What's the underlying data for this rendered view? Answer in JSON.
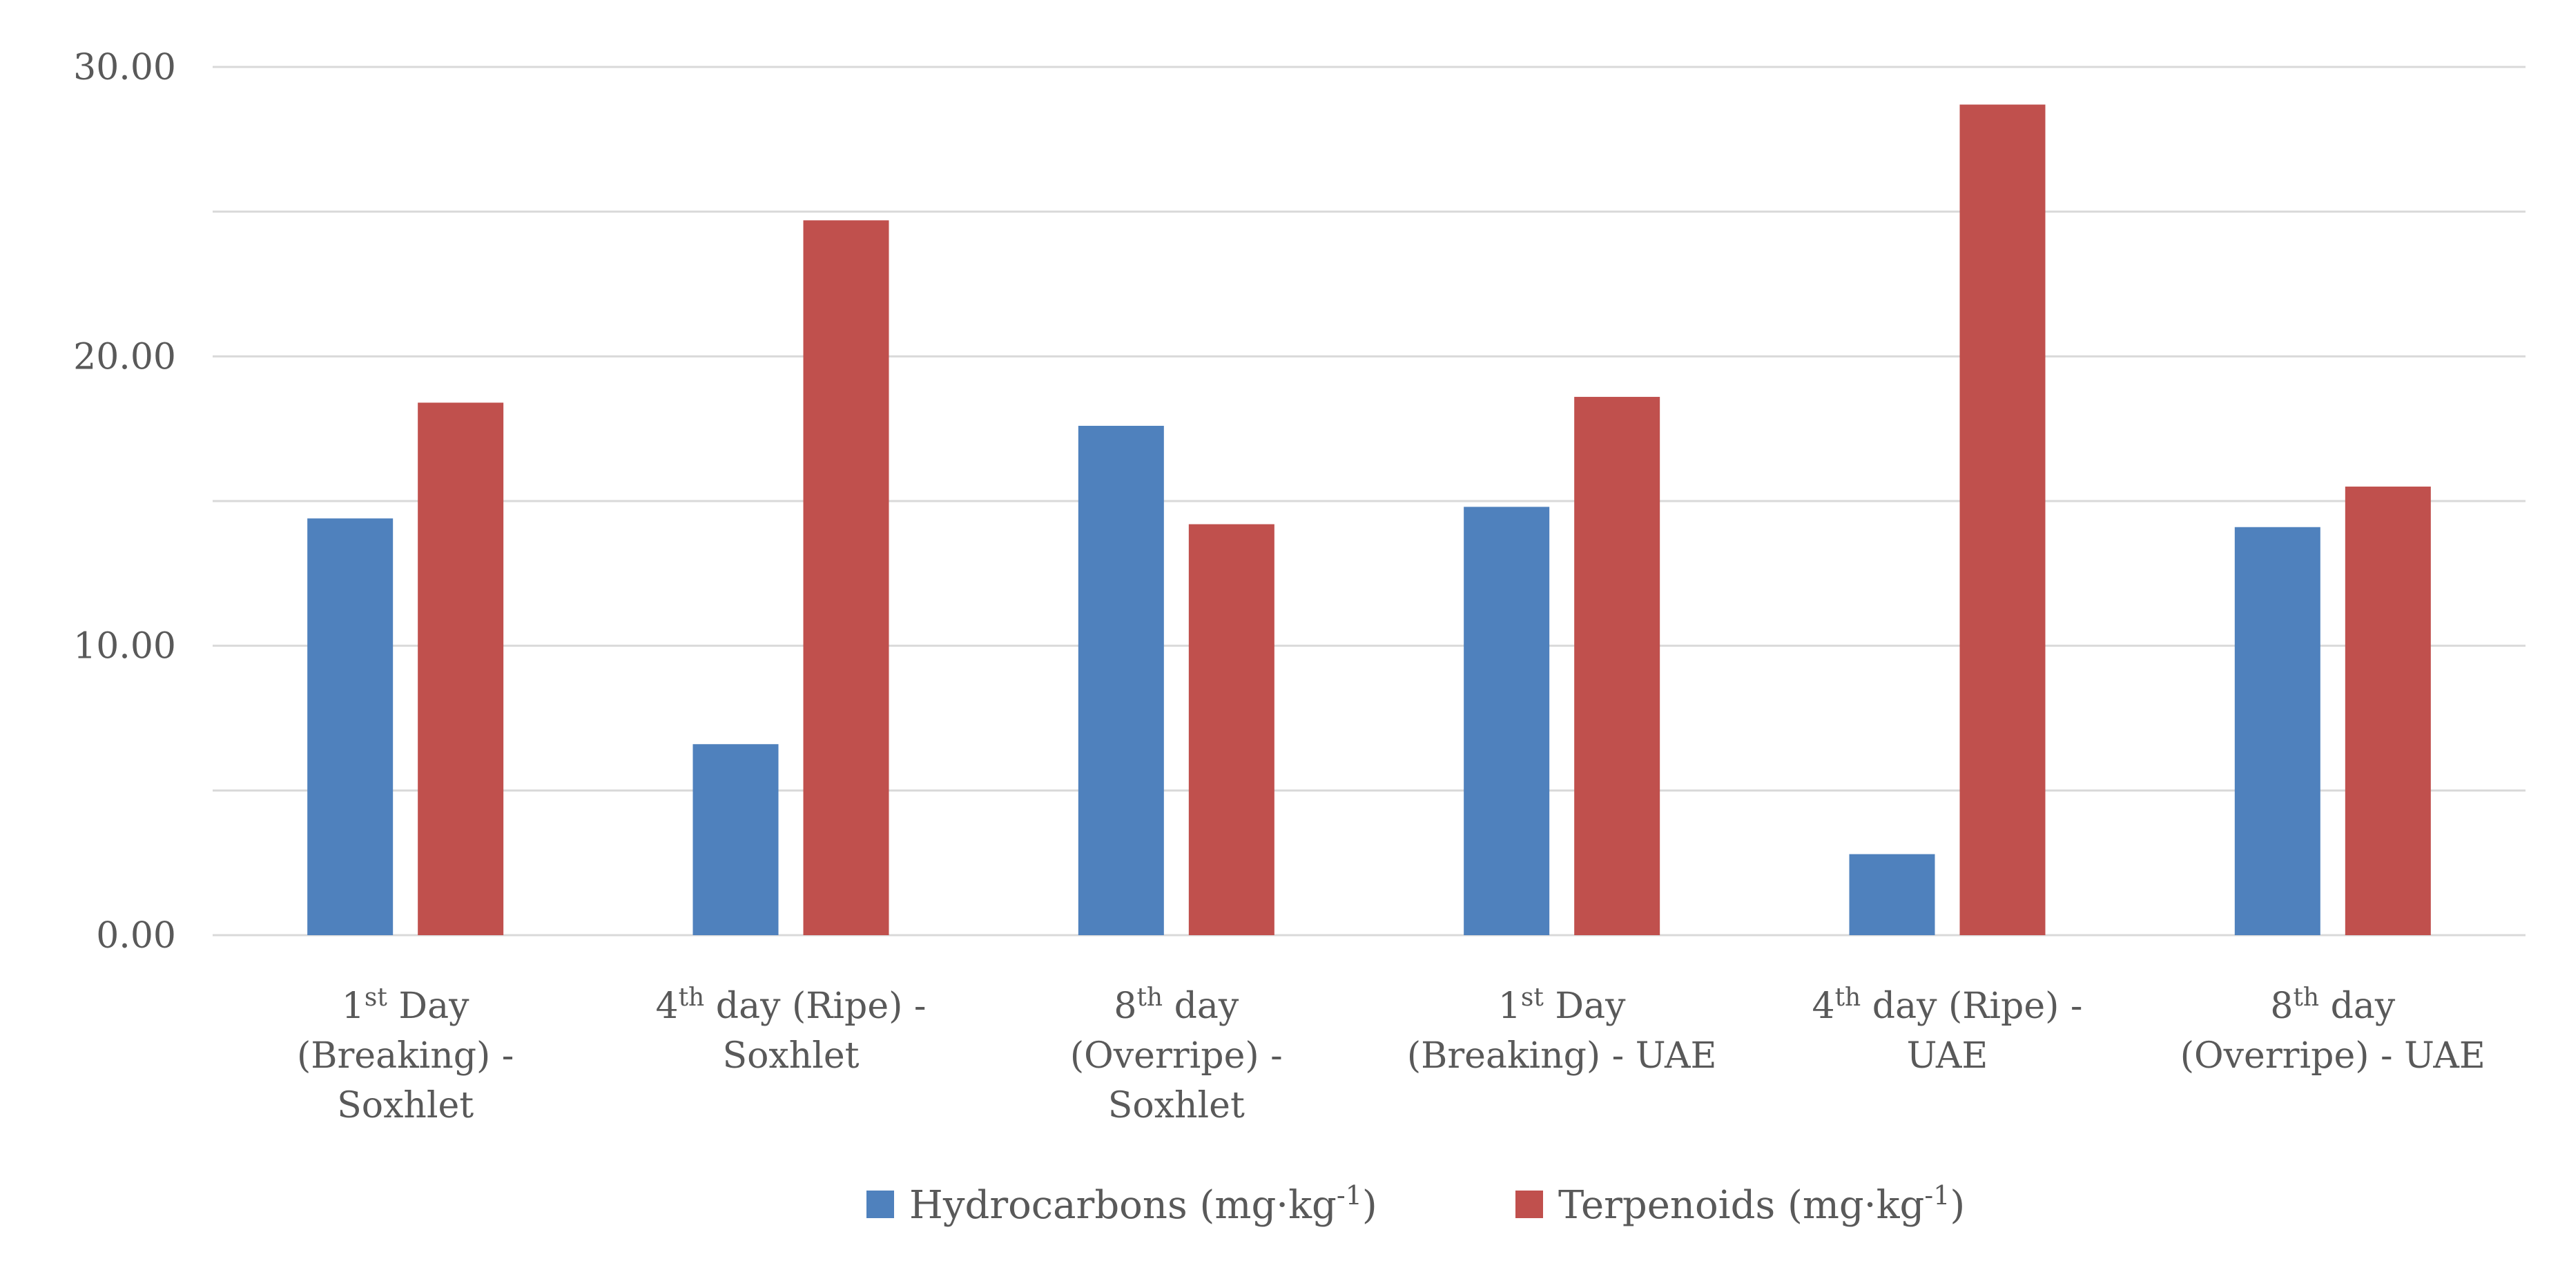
{
  "chart_data": {
    "type": "bar",
    "title": "",
    "xlabel": "",
    "ylabel": "",
    "ylim": [
      0,
      30
    ],
    "yticks": [
      "0.00",
      "10.00",
      "20.00",
      "30.00"
    ],
    "grid": true,
    "legend_position": "bottom",
    "categories": [
      {
        "lines": [
          [
            {
              "t": "1"
            },
            {
              "t": "st",
              "sup": true
            },
            {
              "t": " Day"
            }
          ],
          [
            {
              "t": "(Breaking) -"
            }
          ],
          [
            {
              "t": "Soxhlet"
            }
          ]
        ]
      },
      {
        "lines": [
          [
            {
              "t": "4"
            },
            {
              "t": "th",
              "sup": true
            },
            {
              "t": " day (Ripe) -"
            }
          ],
          [
            {
              "t": "Soxhlet"
            }
          ]
        ]
      },
      {
        "lines": [
          [
            {
              "t": "8"
            },
            {
              "t": "th",
              "sup": true
            },
            {
              "t": " day"
            }
          ],
          [
            {
              "t": "(Overripe) -"
            }
          ],
          [
            {
              "t": "Soxhlet"
            }
          ]
        ]
      },
      {
        "lines": [
          [
            {
              "t": "1"
            },
            {
              "t": "st",
              "sup": true
            },
            {
              "t": " Day"
            }
          ],
          [
            {
              "t": "(Breaking) - UAE"
            }
          ]
        ]
      },
      {
        "lines": [
          [
            {
              "t": "4"
            },
            {
              "t": "th",
              "sup": true
            },
            {
              "t": " day (Ripe) -"
            }
          ],
          [
            {
              "t": "UAE"
            }
          ]
        ]
      },
      {
        "lines": [
          [
            {
              "t": "8"
            },
            {
              "t": "th",
              "sup": true
            },
            {
              "t": " day"
            }
          ],
          [
            {
              "t": "(Overripe) - UAE"
            }
          ]
        ]
      }
    ],
    "series": [
      {
        "name": "Hydrocarbons (mg·kg-1)",
        "legend_parts": [
          {
            "t": "Hydrocarbons (mg·kg"
          },
          {
            "t": "-1",
            "sup": true
          },
          {
            "t": ")"
          }
        ],
        "color": "#4f81bd",
        "values": [
          14.4,
          6.6,
          17.6,
          14.8,
          2.8,
          14.1
        ]
      },
      {
        "name": "Terpenoids (mg·kg-1)",
        "legend_parts": [
          {
            "t": "Terpenoids (mg·kg"
          },
          {
            "t": "-1",
            "sup": true
          },
          {
            "t": ")"
          }
        ],
        "color": "#c0504d",
        "values": [
          18.4,
          24.7,
          14.2,
          18.6,
          28.7,
          15.5
        ]
      }
    ]
  }
}
